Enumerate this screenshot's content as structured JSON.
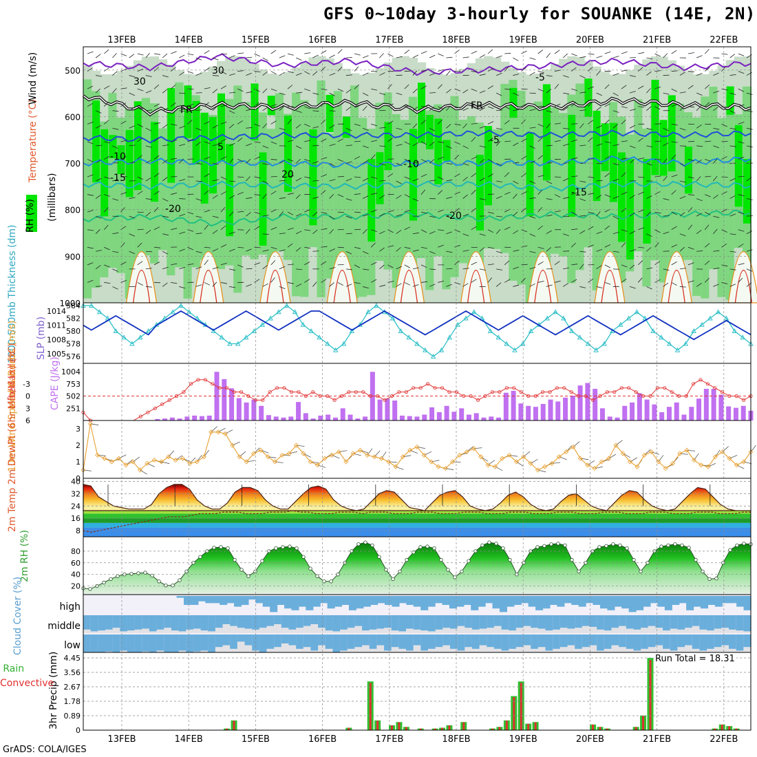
{
  "title": "GFS 0~10day 3-hourly for SOUANKE (14E, 2N)",
  "credit": "GrADS: COLA/IGES",
  "dates": [
    "13FEB",
    "14FEB",
    "15FEB",
    "16FEB",
    "17FEB",
    "18FEB",
    "19FEB",
    "20FEB",
    "21FEB",
    "22FEB"
  ],
  "colors": {
    "rh_green": "#00e600",
    "rh_mid": "#7fd67f",
    "rh_pale": "#c8dcc8",
    "slp": "#1030c0",
    "thick": "#30c0c8",
    "cape": "#c070f0",
    "li": "#e03030",
    "wind": "#e8a030",
    "rain": "#30c030",
    "conv": "#e03030",
    "cloud": "#6aaedc"
  },
  "chart_data": [
    {
      "type": "contour",
      "name": "upper-air",
      "ylabel_parts": [
        "RH (%)",
        "Temperature (°C)",
        "Wind (m/s)"
      ],
      "yunit": "(millibars)",
      "yticks": [
        500,
        600,
        700,
        800,
        900,
        1000
      ],
      "ylim": [
        450,
        1000
      ],
      "contour_labels": [
        "-5",
        "FR",
        "FR",
        "-5",
        "5",
        "-10",
        "-10",
        "-15",
        "-15",
        "-20",
        "-20",
        "30",
        "30",
        "20"
      ],
      "isotherms": [
        {
          "name": "-5C",
          "p": [
            485,
            495,
            470,
            490,
            480,
            505,
            500,
            490,
            480,
            495,
            485
          ]
        },
        {
          "name": "0C",
          "p": [
            555,
            590,
            575,
            580,
            570,
            585,
            575,
            580,
            565,
            575,
            580
          ]
        },
        {
          "name": "5C",
          "p": [
            645,
            650,
            645,
            640,
            640,
            640,
            635,
            640,
            635,
            640,
            635
          ]
        },
        {
          "name": "10C",
          "p": [
            700,
            695,
            700,
            700,
            705,
            700,
            700,
            700,
            690,
            700,
            690
          ]
        },
        {
          "name": "15C",
          "p": [
            745,
            750,
            745,
            748,
            750,
            745,
            745,
            755,
            745,
            745,
            748
          ]
        },
        {
          "name": "20C",
          "p": [
            820,
            815,
            830,
            815,
            815,
            810,
            820,
            810,
            815,
            810,
            805
          ]
        }
      ]
    },
    {
      "type": "line",
      "name": "thickness-slp",
      "ylabel_left": "1000-500mb Thickness (dm)",
      "ylabel_right": "SLP (mb)",
      "yticks_left": [
        576,
        578,
        580,
        582,
        584
      ],
      "yticks_right": [
        1005,
        1008,
        1011,
        1014
      ],
      "slp": [
        1011,
        1010,
        1011,
        1012,
        1013,
        1012,
        1011,
        1010,
        1009,
        1011,
        1012,
        1013,
        1014,
        1013,
        1012,
        1011,
        1010,
        1011,
        1012,
        1013,
        1014,
        1013,
        1012,
        1011,
        1010,
        1011,
        1012,
        1013,
        1014,
        1014,
        1013,
        1012,
        1011,
        1010,
        1011,
        1012,
        1013,
        1014,
        1013,
        1012,
        1011,
        1010,
        1009,
        1010,
        1011,
        1012,
        1013,
        1014,
        1013,
        1012,
        1011,
        1010,
        1011,
        1012,
        1013,
        1012,
        1011,
        1010,
        1009,
        1010,
        1011,
        1012,
        1013,
        1012,
        1011,
        1010,
        1009,
        1010,
        1011,
        1012,
        1013,
        1012,
        1011,
        1010,
        1009,
        1008,
        1009,
        1010,
        1011,
        1012,
        1011,
        1010,
        1009
      ],
      "thickness": [
        584,
        584,
        583,
        582,
        580,
        579,
        578,
        579,
        580,
        581,
        582,
        583,
        584,
        583,
        582,
        581,
        580,
        579,
        578,
        578,
        579,
        580,
        581,
        582,
        583,
        584,
        583,
        581,
        580,
        579,
        578,
        577,
        578,
        580,
        581,
        583,
        584,
        583,
        582,
        580,
        579,
        578,
        577,
        576,
        577,
        579,
        581,
        582,
        583,
        582,
        580,
        579,
        578,
        577,
        578,
        580,
        581,
        582,
        583,
        582,
        580,
        579,
        578,
        577,
        578,
        580,
        581,
        582,
        583,
        582,
        580,
        579,
        578,
        577,
        578,
        580,
        581,
        582,
        583,
        582,
        580,
        579,
        578
      ]
    },
    {
      "type": "bar+line",
      "name": "cape-li",
      "ylabel_left": "Lifted Index",
      "ylabel_right": "CAPE (J/kg)",
      "yticks_left": [
        -3,
        0,
        3,
        6
      ],
      "yticks_right": [
        251,
        502,
        753,
        1004
      ],
      "cape": [
        0,
        0,
        0,
        0,
        0,
        0,
        0,
        0,
        0,
        0,
        30,
        40,
        60,
        40,
        80,
        100,
        90,
        100,
        1000,
        850,
        660,
        460,
        370,
        430,
        300,
        110,
        80,
        60,
        80,
        380,
        150,
        40,
        100,
        120,
        60,
        250,
        120,
        40,
        80,
        1000,
        430,
        450,
        410,
        100,
        90,
        80,
        120,
        270,
        170,
        300,
        180,
        250,
        120,
        150,
        60,
        80,
        60,
        570,
        610,
        350,
        300,
        280,
        340,
        430,
        390,
        470,
        510,
        720,
        770,
        650,
        250,
        80,
        60,
        300,
        370,
        560,
        430,
        330,
        170,
        280,
        370,
        120,
        280,
        450,
        650,
        650,
        530,
        290,
        260,
        300,
        200
      ],
      "li": [
        4,
        6,
        8,
        9,
        9,
        9,
        9,
        8,
        5,
        4,
        3,
        2,
        1,
        0,
        -1,
        -3,
        -4,
        -4,
        -3,
        -2,
        -2,
        -1,
        -1,
        0,
        1,
        1,
        -1,
        -2,
        -2,
        -1,
        -1,
        0,
        -1,
        0,
        0,
        1,
        0,
        -1,
        -1,
        -1,
        0,
        0,
        1,
        0,
        -1,
        -1,
        -2,
        -2,
        -3,
        -2,
        -2,
        -1,
        -1,
        0,
        0,
        1,
        0,
        -1,
        -1,
        -2,
        -2,
        -1,
        0,
        0,
        -1,
        -1,
        -2,
        -2,
        -1,
        0,
        0,
        1,
        0,
        -1,
        -1,
        -2,
        -2,
        -1,
        0,
        0,
        -2,
        -2,
        -1,
        0,
        0,
        -3,
        -4,
        -3,
        -2,
        -1,
        0,
        0,
        1,
        0
      ],
      "ylim_li": [
        6,
        -6
      ]
    },
    {
      "type": "line",
      "name": "wind-10m",
      "ylabel": "10m Wind Speed & Barbs (m/s)",
      "yticks": [
        0,
        1,
        2,
        3
      ],
      "ylim": [
        0,
        3.5
      ],
      "speed": [
        0.5,
        3.3,
        1.4,
        1.2,
        1.0,
        1.2,
        0.8,
        1.0,
        0.5,
        0.9,
        1.1,
        1.0,
        1.3,
        1.1,
        1.2,
        0.9,
        1.0,
        1.3,
        2.8,
        2.8,
        2.7,
        2.0,
        1.3,
        1.0,
        1.5,
        1.7,
        1.3,
        1.0,
        1.4,
        1.5,
        2.0,
        1.5,
        1.0,
        0.8,
        1.2,
        1.4,
        1.6,
        1.0,
        1.5,
        1.7,
        1.4,
        1.3,
        1.2,
        1.0,
        0.7,
        1.3,
        1.7,
        1.9,
        1.4,
        1.0,
        0.7,
        0.6,
        1.0,
        1.4,
        1.6,
        1.8,
        1.3,
        0.8,
        0.7,
        1.2,
        1.4,
        1.0,
        1.3,
        0.9,
        0.5,
        0.7,
        0.9,
        1.3,
        1.6,
        1.9,
        1.2,
        0.8,
        0.6,
        1.0,
        1.2,
        2.0,
        1.5,
        1.0,
        0.7,
        1.4,
        1.6,
        1.0,
        0.6,
        0.9,
        1.5,
        1.7,
        1.1,
        0.8,
        0.7,
        1.3,
        1.6,
        1.2,
        0.8,
        1.0,
        1.6
      ]
    },
    {
      "type": "area",
      "name": "2m-temp",
      "ylabel": "2m Temp 2m DewPt (6hr Min/Max) (°C)",
      "yticks": [
        8,
        16,
        24,
        32,
        40
      ],
      "ylim": [
        4,
        42
      ],
      "temp": [
        38,
        37,
        30,
        27,
        24,
        23,
        22,
        22,
        22,
        25,
        32,
        36,
        38,
        38,
        35,
        28,
        24,
        22,
        22,
        26,
        33,
        36,
        36,
        34,
        28,
        24,
        22,
        22,
        27,
        32,
        36,
        37,
        35,
        28,
        24,
        22,
        21,
        22,
        27,
        32,
        34,
        33,
        28,
        23,
        22,
        21,
        26,
        31,
        33,
        34,
        30,
        24,
        22,
        21,
        22,
        26,
        31,
        33,
        30,
        25,
        22,
        21,
        22,
        27,
        31,
        32,
        28,
        24,
        22,
        21,
        26,
        31,
        34,
        33,
        28,
        24,
        22,
        21,
        22,
        27,
        32,
        36,
        35,
        30,
        25,
        22,
        21,
        21,
        21
      ],
      "dewpt": [
        8,
        7,
        8,
        9,
        10,
        11,
        12,
        13,
        14,
        15,
        16,
        17,
        17,
        17,
        18,
        19,
        19,
        19,
        20,
        20,
        20,
        19,
        19,
        19,
        20,
        20,
        20,
        21,
        20,
        20,
        19,
        19,
        19,
        20,
        20,
        20,
        19,
        20,
        20,
        20,
        19,
        19,
        19,
        20,
        20,
        20,
        19,
        19,
        19,
        20,
        20,
        20,
        19,
        19,
        19,
        20,
        20,
        20,
        19,
        19,
        19,
        20,
        20,
        20,
        19,
        19,
        19,
        20,
        20,
        20,
        19,
        19,
        19,
        20,
        20,
        20,
        19,
        19,
        19,
        20,
        20,
        20,
        19,
        19,
        19,
        20,
        20
      ]
    },
    {
      "type": "area",
      "name": "2m-rh",
      "ylabel": "2m RH (%)",
      "yticks": [
        20,
        40,
        60,
        80
      ],
      "ylim": [
        10,
        100
      ],
      "rh": [
        16,
        15,
        20,
        26,
        32,
        37,
        40,
        41,
        42,
        43,
        38,
        28,
        21,
        21,
        30,
        45,
        60,
        70,
        80,
        86,
        87,
        85,
        65,
        48,
        37,
        45,
        63,
        80,
        85,
        87,
        88,
        85,
        70,
        50,
        37,
        28,
        28,
        40,
        60,
        80,
        92,
        95,
        90,
        70,
        48,
        32,
        45,
        65,
        78,
        87,
        88,
        85,
        65,
        48,
        35,
        45,
        63,
        80,
        90,
        95,
        93,
        85,
        65,
        40,
        60,
        80,
        87,
        89,
        92,
        93,
        90,
        65,
        45,
        60,
        80,
        87,
        89,
        92,
        90,
        85,
        65,
        45,
        60,
        80,
        88,
        90,
        92,
        90,
        86,
        65,
        45,
        32,
        33,
        60,
        82,
        90,
        93,
        92
      ]
    },
    {
      "type": "heatmap",
      "name": "cloud-cover",
      "ylabel": "Cloud Cover (%)",
      "levels": [
        "high",
        "middle",
        "low"
      ],
      "high": [
        0,
        0,
        0,
        0,
        0,
        0,
        0,
        0,
        0,
        0,
        0,
        0,
        0,
        10,
        50,
        50,
        30,
        40,
        40,
        50,
        40,
        60,
        50,
        20,
        40,
        60,
        90,
        50,
        70,
        80,
        60,
        80,
        60,
        40,
        70,
        60,
        50,
        80,
        70,
        60,
        50,
        40,
        50,
        60,
        40,
        50,
        60,
        80,
        60,
        40,
        50,
        70,
        60,
        50,
        80,
        60,
        40,
        70,
        90,
        60,
        50,
        40,
        60,
        80,
        70,
        50,
        60,
        40,
        50,
        60,
        40,
        50,
        70,
        80,
        60,
        70,
        90,
        80,
        60,
        40,
        60,
        80,
        50,
        40,
        80,
        60,
        70,
        50,
        60,
        40,
        40,
        60,
        80
      ],
      "middle": [
        80,
        90,
        85,
        80,
        70,
        90,
        85,
        80,
        75,
        90,
        80,
        70,
        85,
        90,
        80,
        75,
        85,
        90,
        70,
        50,
        60,
        70,
        75,
        80,
        70,
        60,
        50,
        70,
        80,
        70,
        60,
        50,
        70,
        85,
        90,
        80,
        70,
        60,
        85,
        80,
        75,
        70,
        85,
        90,
        75,
        80,
        85,
        90,
        80,
        70,
        75,
        60,
        70,
        80,
        75,
        70,
        60,
        80,
        85,
        70,
        60,
        70,
        75,
        85,
        80,
        70,
        75,
        70,
        60,
        65,
        80,
        85,
        70,
        60,
        75,
        80,
        70,
        60,
        70,
        85,
        75,
        80,
        70,
        60,
        80,
        85,
        75,
        70,
        80,
        85,
        90
      ],
      "low": [
        100,
        100,
        100,
        95,
        100,
        90,
        100,
        100,
        95,
        100,
        90,
        100,
        100,
        90,
        100,
        95,
        90,
        100,
        70,
        60,
        80,
        40,
        60,
        90,
        100,
        80,
        70,
        50,
        60,
        80,
        70,
        90,
        60,
        80,
        100,
        90,
        80,
        70,
        60,
        80,
        60,
        90,
        70,
        80,
        90,
        60,
        90,
        80,
        70,
        60,
        80,
        90,
        70,
        80,
        60,
        70,
        80,
        90,
        80,
        70,
        60,
        80,
        70,
        90,
        80,
        70,
        60,
        80,
        70,
        60,
        90,
        80,
        60,
        70,
        80,
        90,
        80,
        70,
        60,
        80,
        90,
        70,
        60,
        80,
        90,
        80,
        70,
        60,
        80,
        90,
        70
      ]
    },
    {
      "type": "bar",
      "name": "precip",
      "ylabel": "3hr Precip (mm)",
      "legend": [
        "Total / Rain",
        "Convective"
      ],
      "run_total": "Run Total = 18.31",
      "yticks": [
        "0",
        "0.89",
        "1.78",
        "2.67",
        "3.56",
        "4.45"
      ],
      "ylim": [
        0,
        4.45
      ],
      "bars": [
        [
          20,
          0.1
        ],
        [
          21,
          0.6
        ],
        [
          37,
          0.15
        ],
        [
          40,
          3.0
        ],
        [
          41,
          0.6
        ],
        [
          43,
          0.3
        ],
        [
          44,
          0.5
        ],
        [
          45,
          0.2
        ],
        [
          47,
          0.1
        ],
        [
          49,
          0.1
        ],
        [
          50,
          0.15
        ],
        [
          51,
          0.3
        ],
        [
          53,
          0.5
        ],
        [
          57,
          0.1
        ],
        [
          58,
          0.2
        ],
        [
          59,
          0.6
        ],
        [
          60,
          2.1
        ],
        [
          61,
          3.0
        ],
        [
          62,
          0.4
        ],
        [
          63,
          0.5
        ],
        [
          71,
          0.35
        ],
        [
          72,
          0.2
        ],
        [
          73,
          0.1
        ],
        [
          77,
          0.2
        ],
        [
          78,
          0.9
        ],
        [
          79,
          4.45
        ],
        [
          88,
          0.1
        ],
        [
          89,
          0.35
        ],
        [
          90,
          0.25
        ],
        [
          91,
          0.1
        ]
      ]
    }
  ]
}
